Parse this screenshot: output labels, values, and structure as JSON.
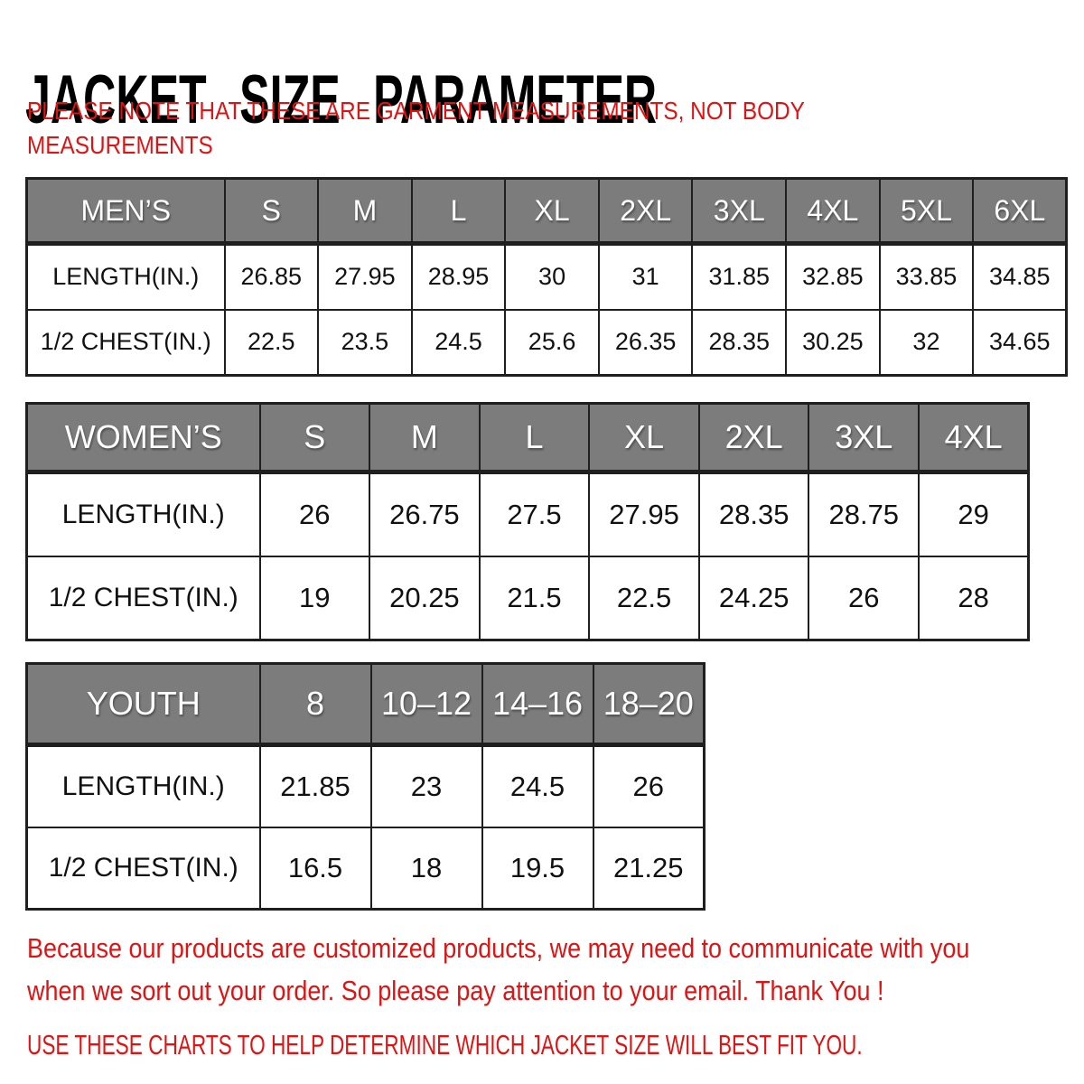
{
  "page": {
    "title": "JACKET SIZE PARAMETER",
    "note_lines": [
      "PLEASE NOTE THAT THESE ARE GARMENT MEASUREMENTS, NOT BODY",
      "MEASUREMENTS"
    ],
    "footer_lines": [
      "Because our products are customized products, we may need to communicate with you",
      "when we sort out your order. So please pay attention to your email. Thank You !"
    ],
    "footer_caps": "USE THESE CHARTS TO HELP DETERMINE WHICH JACKET SIZE WILL BEST FIT YOU."
  },
  "colors": {
    "accent_red": "#e01313",
    "header_gray": "#7c7c7c",
    "header_text": "#ffffff",
    "border_dark": "#1f1f1f",
    "body_text": "#111111"
  },
  "tables": [
    {
      "name": "mens",
      "header": [
        "MEN’S",
        "S",
        "M",
        "L",
        "XL",
        "2XL",
        "3XL",
        "4XL",
        "5XL",
        "6XL"
      ],
      "rows": [
        {
          "label": "LENGTH(IN.)",
          "values": [
            "26.85",
            "27.95",
            "28.95",
            "30",
            "31",
            "31.85",
            "32.85",
            "33.85",
            "34.85"
          ]
        },
        {
          "label": "1/2 CHEST(IN.)",
          "values": [
            "22.5",
            "23.5",
            "24.5",
            "25.6",
            "26.35",
            "28.35",
            "30.25",
            "32",
            "34.65"
          ]
        }
      ]
    },
    {
      "name": "womens",
      "header": [
        "WOMEN’S",
        "S",
        "M",
        "L",
        "XL",
        "2XL",
        "3XL",
        "4XL"
      ],
      "rows": [
        {
          "label": "LENGTH(IN.)",
          "values": [
            "26",
            "26.75",
            "27.5",
            "27.95",
            "28.35",
            "28.75",
            "29"
          ]
        },
        {
          "label": "1/2 CHEST(IN.)",
          "values": [
            "19",
            "20.25",
            "21.5",
            "22.5",
            "24.25",
            "26",
            "28"
          ]
        }
      ]
    },
    {
      "name": "youth",
      "header": [
        "YOUTH",
        "8",
        "10–12",
        "14–16",
        "18–20"
      ],
      "rows": [
        {
          "label": "LENGTH(IN.)",
          "values": [
            "21.85",
            "23",
            "24.5",
            "26"
          ]
        },
        {
          "label": "1/2 CHEST(IN.)",
          "values": [
            "16.5",
            "18",
            "19.5",
            "21.25"
          ]
        }
      ]
    }
  ]
}
